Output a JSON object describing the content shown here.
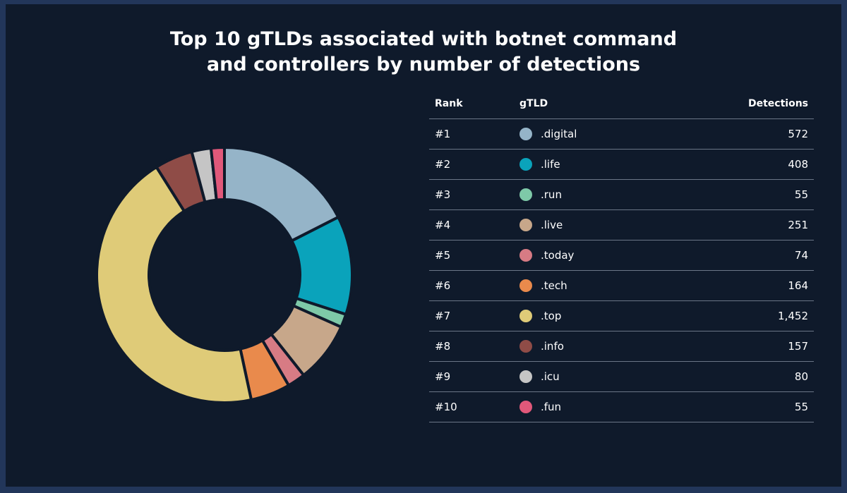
{
  "title": {
    "line1": "Top 10 gTLDs associated with botnet command",
    "line2": "and controllers by number of detections"
  },
  "table": {
    "headers": {
      "rank": "Rank",
      "gtld": "gTLD",
      "detections": "Detections"
    }
  },
  "chart_data": {
    "type": "pie",
    "style": "donut",
    "title": "Top 10 gTLDs associated with botnet command and controllers by number of detections",
    "categories": [
      ".digital",
      ".life",
      ".run",
      ".live",
      ".today",
      ".tech",
      ".top",
      ".info",
      ".icu",
      ".fun"
    ],
    "values": [
      572,
      408,
      55,
      251,
      74,
      164,
      1452,
      157,
      80,
      55
    ],
    "ranks": [
      "#1",
      "#2",
      "#3",
      "#4",
      "#5",
      "#6",
      "#7",
      "#8",
      "#9",
      "#10"
    ],
    "display_values": [
      "572",
      "408",
      "55",
      "251",
      "74",
      "164",
      "1,452",
      "157",
      "80",
      "55"
    ],
    "colors": [
      "#95b4c8",
      "#0aa3bb",
      "#7ec9a8",
      "#c7a78a",
      "#d77b84",
      "#e98a4c",
      "#dfcb78",
      "#8f4c47",
      "#c5c5c5",
      "#e1587a"
    ],
    "slice_order": [
      0,
      1,
      2,
      3,
      4,
      5,
      6,
      7,
      8,
      9
    ],
    "legend": "right-table"
  }
}
